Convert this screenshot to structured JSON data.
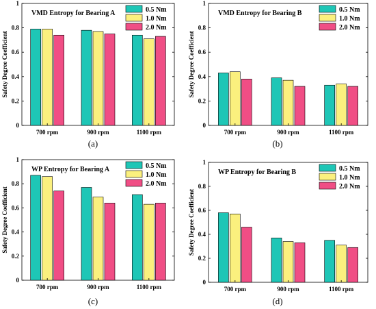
{
  "chart_data": [
    {
      "type": "bar",
      "panel_caption": "(a)",
      "title": "VMD Entropy for Bearing A",
      "ylabel": "Safety Degree Coefficient",
      "xlabel": "",
      "categories": [
        "700 rpm",
        "900 rpm",
        "1100 rpm"
      ],
      "ylim": [
        0,
        1
      ],
      "yticks": [
        "0",
        "0.2",
        "0.4",
        "0.6",
        "0.8",
        "1"
      ],
      "legend_position": "top-right",
      "series": [
        {
          "name": "0.5 Nm",
          "color": "#1ec6b6",
          "values": [
            0.79,
            0.78,
            0.74
          ]
        },
        {
          "name": "1.0 Nm",
          "color": "#fbf07e",
          "values": [
            0.79,
            0.77,
            0.71
          ]
        },
        {
          "name": "2.0 Nm",
          "color": "#f04e85",
          "values": [
            0.74,
            0.75,
            0.73
          ]
        }
      ]
    },
    {
      "type": "bar",
      "panel_caption": "(b)",
      "title": "VMD Entropy for Bearing B",
      "ylabel": "Safety Degree Coefficient",
      "xlabel": "",
      "categories": [
        "700 rpm",
        "900 rpm",
        "1100 rpm"
      ],
      "ylim": [
        0,
        1
      ],
      "yticks": [
        "0",
        "0.2",
        "0.4",
        "0.6",
        "0.8",
        "1"
      ],
      "legend_position": "top-right",
      "series": [
        {
          "name": "0.5 Nm",
          "color": "#1ec6b6",
          "values": [
            0.43,
            0.39,
            0.33
          ]
        },
        {
          "name": "1.0 Nm",
          "color": "#fbf07e",
          "values": [
            0.44,
            0.37,
            0.34
          ]
        },
        {
          "name": "2.0 Nm",
          "color": "#f04e85",
          "values": [
            0.38,
            0.32,
            0.32
          ]
        }
      ]
    },
    {
      "type": "bar",
      "panel_caption": "(c)",
      "title": "WP Entropy for Bearing A",
      "ylabel": "Safety Degree Coefficient",
      "xlabel": "",
      "categories": [
        "700 rpm",
        "900 rpm",
        "1100 rpm"
      ],
      "ylim": [
        0,
        1
      ],
      "yticks": [
        "0",
        "0.2",
        "0.4",
        "0.6",
        "0.8",
        "1"
      ],
      "legend_position": "top-right",
      "series": [
        {
          "name": "0.5 Nm",
          "color": "#1ec6b6",
          "values": [
            0.87,
            0.77,
            0.71
          ]
        },
        {
          "name": "1.0 Nm",
          "color": "#fbf07e",
          "values": [
            0.86,
            0.69,
            0.63
          ]
        },
        {
          "name": "2.0 Nm",
          "color": "#f04e85",
          "values": [
            0.74,
            0.64,
            0.64
          ]
        }
      ]
    },
    {
      "type": "bar",
      "panel_caption": "(d)",
      "title": "WP Entropy for Bearing B",
      "ylabel": "Safety Degree Coefficient",
      "xlabel": "",
      "categories": [
        "700 rpm",
        "900 rpm",
        "1100 rpm"
      ],
      "ylim": [
        0,
        1
      ],
      "yticks": [
        "0",
        "0.2",
        "0.4",
        "0.6",
        "0.8",
        "1"
      ],
      "legend_position": "top-right",
      "series": [
        {
          "name": "0.5 Nm",
          "color": "#1ec6b6",
          "values": [
            0.58,
            0.37,
            0.35
          ]
        },
        {
          "name": "1.0 Nm",
          "color": "#fbf07e",
          "values": [
            0.57,
            0.34,
            0.31
          ]
        },
        {
          "name": "2.0 Nm",
          "color": "#f04e85",
          "values": [
            0.46,
            0.33,
            0.29
          ]
        }
      ]
    }
  ]
}
